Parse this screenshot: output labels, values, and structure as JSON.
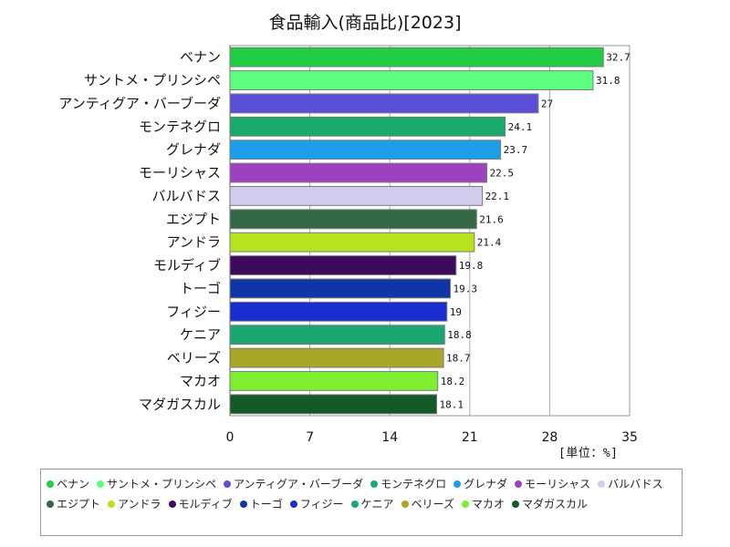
{
  "chart_data": {
    "type": "bar",
    "orientation": "horizontal",
    "title": "食品輸入(商品比)[2023]",
    "unit_label": "[単位：%]",
    "xlim": [
      0,
      35
    ],
    "x_ticks": [
      0,
      7,
      14,
      21,
      28,
      35
    ],
    "grid": true,
    "legend_position": "bottom",
    "categories": [
      "ベナン",
      "サントメ・プリンシペ",
      "アンティグア・バーブーダ",
      "モンテネグロ",
      "グレナダ",
      "モーリシャス",
      "バルバドス",
      "エジプト",
      "アンドラ",
      "モルディブ",
      "トーゴ",
      "フィジー",
      "ケニア",
      "ベリーズ",
      "マカオ",
      "マダガスカル"
    ],
    "values": [
      32.7,
      31.8,
      27,
      24.1,
      23.7,
      22.5,
      22.1,
      21.6,
      21.4,
      19.8,
      19.3,
      19,
      18.8,
      18.7,
      18.2,
      18.1
    ],
    "value_labels": [
      "32.7",
      "31.8",
      "27",
      "24.1",
      "23.7",
      "22.5",
      "22.1",
      "21.6",
      "21.4",
      "19.8",
      "19.3",
      "19",
      "18.8",
      "18.7",
      "18.2",
      "18.1"
    ],
    "colors": [
      "#22cc44",
      "#5cff80",
      "#5a4fd6",
      "#1aaa6c",
      "#1e9ee8",
      "#9c42c0",
      "#d0ccee",
      "#346846",
      "#b6e21e",
      "#3e0a5e",
      "#1036a6",
      "#1a2ed0",
      "#1aa870",
      "#a8a628",
      "#7eef30",
      "#145a26"
    ]
  }
}
